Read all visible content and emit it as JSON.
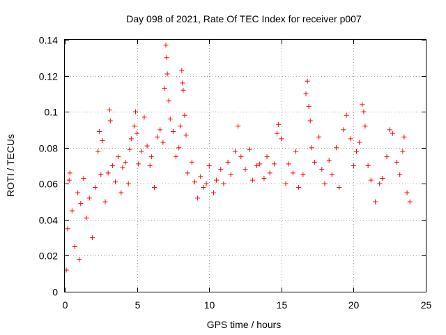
{
  "chart_data": {
    "type": "scatter",
    "title": "Day 098 of 2021, Rate Of TEC Index for receiver p007",
    "xlabel": "GPS time / hours",
    "ylabel": "ROTI / TECUs",
    "xlim": [
      0,
      25
    ],
    "ylim": [
      0,
      0.14
    ],
    "xticks": [
      0,
      5,
      10,
      15,
      20,
      25
    ],
    "xtick_labels": [
      "0",
      "5",
      "10",
      "15",
      "20",
      "25"
    ],
    "yticks": [
      0,
      0.02,
      0.04,
      0.06,
      0.08,
      0.1,
      0.12,
      0.14
    ],
    "ytick_labels": [
      "0",
      "0.02",
      "0.04",
      "0.06",
      "0.08",
      "0.1",
      "0.12",
      "0.14"
    ],
    "grid": true,
    "marker": "+",
    "color": "#ff0000",
    "series": [
      {
        "points": [
          [
            0.1,
            0.012
          ],
          [
            0.2,
            0.035
          ],
          [
            0.3,
            0.062
          ],
          [
            0.35,
            0.066
          ],
          [
            0.5,
            0.045
          ],
          [
            0.7,
            0.025
          ],
          [
            0.9,
            0.055
          ],
          [
            1.0,
            0.018
          ],
          [
            1.1,
            0.049
          ],
          [
            1.3,
            0.063
          ],
          [
            1.5,
            0.041
          ],
          [
            1.7,
            0.052
          ],
          [
            1.9,
            0.03
          ],
          [
            2.1,
            0.058
          ],
          [
            2.3,
            0.078
          ],
          [
            2.4,
            0.089
          ],
          [
            2.5,
            0.065
          ],
          [
            2.6,
            0.084
          ],
          [
            2.8,
            0.05
          ],
          [
            3.0,
            0.066
          ],
          [
            3.1,
            0.101
          ],
          [
            3.15,
            0.095
          ],
          [
            3.3,
            0.07
          ],
          [
            3.5,
            0.061
          ],
          [
            3.7,
            0.075
          ],
          [
            3.9,
            0.055
          ],
          [
            4.0,
            0.069
          ],
          [
            4.2,
            0.072
          ],
          [
            4.4,
            0.06
          ],
          [
            4.5,
            0.079
          ],
          [
            4.6,
            0.085
          ],
          [
            4.8,
            0.092
          ],
          [
            4.9,
            0.1
          ],
          [
            5.0,
            0.088
          ],
          [
            5.1,
            0.071
          ],
          [
            5.3,
            0.078
          ],
          [
            5.5,
            0.097
          ],
          [
            5.7,
            0.081
          ],
          [
            5.9,
            0.07
          ],
          [
            6.0,
            0.075
          ],
          [
            6.2,
            0.058
          ],
          [
            6.4,
            0.086
          ],
          [
            6.6,
            0.09
          ],
          [
            6.8,
            0.083
          ],
          [
            6.9,
            0.113
          ],
          [
            7.0,
            0.137
          ],
          [
            7.05,
            0.13
          ],
          [
            7.1,
            0.121
          ],
          [
            7.2,
            0.106
          ],
          [
            7.3,
            0.096
          ],
          [
            7.5,
            0.089
          ],
          [
            7.7,
            0.075
          ],
          [
            7.9,
            0.08
          ],
          [
            8.0,
            0.092
          ],
          [
            8.1,
            0.123
          ],
          [
            8.15,
            0.116
          ],
          [
            8.2,
            0.112
          ],
          [
            8.3,
            0.098
          ],
          [
            8.4,
            0.087
          ],
          [
            8.5,
            0.066
          ],
          [
            8.8,
            0.072
          ],
          [
            9.0,
            0.061
          ],
          [
            9.2,
            0.052
          ],
          [
            9.4,
            0.064
          ],
          [
            9.6,
            0.058
          ],
          [
            9.8,
            0.06
          ],
          [
            10.0,
            0.07
          ],
          [
            10.3,
            0.055
          ],
          [
            10.5,
            0.062
          ],
          [
            10.8,
            0.068
          ],
          [
            11.0,
            0.06
          ],
          [
            11.3,
            0.072
          ],
          [
            11.5,
            0.065
          ],
          [
            11.8,
            0.078
          ],
          [
            12.0,
            0.092
          ],
          [
            12.2,
            0.075
          ],
          [
            12.5,
            0.068
          ],
          [
            12.8,
            0.079
          ],
          [
            13.0,
            0.062
          ],
          [
            13.3,
            0.07
          ],
          [
            13.5,
            0.071
          ],
          [
            13.8,
            0.063
          ],
          [
            14.0,
            0.075
          ],
          [
            14.2,
            0.066
          ],
          [
            14.5,
            0.071
          ],
          [
            14.7,
            0.088
          ],
          [
            14.8,
            0.093
          ],
          [
            15.0,
            0.085
          ],
          [
            15.3,
            0.06
          ],
          [
            15.5,
            0.071
          ],
          [
            15.8,
            0.066
          ],
          [
            16.0,
            0.078
          ],
          [
            16.2,
            0.058
          ],
          [
            16.5,
            0.065
          ],
          [
            16.7,
            0.11
          ],
          [
            16.8,
            0.117
          ],
          [
            16.9,
            0.103
          ],
          [
            17.0,
            0.095
          ],
          [
            17.1,
            0.08
          ],
          [
            17.3,
            0.072
          ],
          [
            17.6,
            0.086
          ],
          [
            17.8,
            0.068
          ],
          [
            18.0,
            0.06
          ],
          [
            18.3,
            0.073
          ],
          [
            18.5,
            0.065
          ],
          [
            18.8,
            0.08
          ],
          [
            19.0,
            0.058
          ],
          [
            19.3,
            0.09
          ],
          [
            19.5,
            0.098
          ],
          [
            19.8,
            0.085
          ],
          [
            20.0,
            0.07
          ],
          [
            20.2,
            0.078
          ],
          [
            20.4,
            0.083
          ],
          [
            20.6,
            0.104
          ],
          [
            20.7,
            0.1
          ],
          [
            20.8,
            0.092
          ],
          [
            21.0,
            0.07
          ],
          [
            21.2,
            0.062
          ],
          [
            21.5,
            0.05
          ],
          [
            21.8,
            0.06
          ],
          [
            22.0,
            0.063
          ],
          [
            22.3,
            0.075
          ],
          [
            22.5,
            0.09
          ],
          [
            22.7,
            0.088
          ],
          [
            23.0,
            0.072
          ],
          [
            23.2,
            0.065
          ],
          [
            23.4,
            0.078
          ],
          [
            23.5,
            0.086
          ],
          [
            23.7,
            0.055
          ],
          [
            23.9,
            0.05
          ]
        ]
      }
    ]
  }
}
